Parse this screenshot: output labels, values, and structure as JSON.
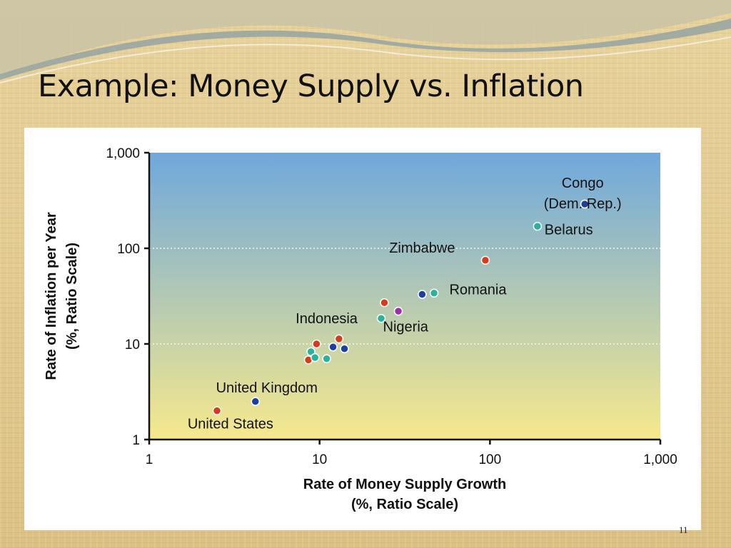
{
  "slide": {
    "title": "Example: Money Supply vs. Inflation",
    "number": "11",
    "background_color": "#e2c98a",
    "wave_colors": [
      "#9aa6a3",
      "#c9c3a6"
    ]
  },
  "chart_data": {
    "type": "scatter",
    "xlabel": [
      "Rate of Money Supply Growth",
      "(%, Ratio Scale)"
    ],
    "ylabel": [
      "Rate of Inflation per Year",
      "(%, Ratio Scale)"
    ],
    "xscale": "log",
    "yscale": "log",
    "xlim": [
      1,
      1000
    ],
    "ylim": [
      1,
      1000
    ],
    "xticks": [
      1,
      10,
      100,
      1000
    ],
    "yticks": [
      1,
      10,
      100,
      1000
    ],
    "xtick_labels": [
      "1",
      "10",
      "100",
      "1,000"
    ],
    "ytick_labels": [
      "1",
      "10",
      "100",
      "1,000"
    ],
    "grid": "horizontal dotted",
    "background_gradient": [
      "#6fa8dc",
      "#f6e98c"
    ],
    "point_colors": {
      "red": "#d63b1f",
      "navy": "#1f3f9e",
      "teal": "#2ab39c",
      "purple": "#9c2fa6"
    },
    "points": [
      {
        "x": 2.5,
        "y": 2,
        "color": "red"
      },
      {
        "x": 4.2,
        "y": 2.5,
        "color": "navy"
      },
      {
        "x": 8.6,
        "y": 6.8,
        "color": "red"
      },
      {
        "x": 8.9,
        "y": 8.3,
        "color": "teal"
      },
      {
        "x": 9.4,
        "y": 7.2,
        "color": "teal"
      },
      {
        "x": 9.6,
        "y": 10,
        "color": "red"
      },
      {
        "x": 11,
        "y": 7,
        "color": "teal"
      },
      {
        "x": 12,
        "y": 9.3,
        "color": "navy"
      },
      {
        "x": 13,
        "y": 11.3,
        "color": "red"
      },
      {
        "x": 14,
        "y": 8.9,
        "color": "navy"
      },
      {
        "x": 23,
        "y": 18.5,
        "color": "teal"
      },
      {
        "x": 24,
        "y": 27,
        "color": "red"
      },
      {
        "x": 29,
        "y": 22,
        "color": "purple"
      },
      {
        "x": 40,
        "y": 33,
        "color": "navy"
      },
      {
        "x": 47,
        "y": 34,
        "color": "teal"
      },
      {
        "x": 94,
        "y": 75,
        "color": "red"
      },
      {
        "x": 190,
        "y": 170,
        "color": "teal"
      },
      {
        "x": 360,
        "y": 290,
        "color": "navy"
      }
    ],
    "annotations": [
      {
        "lines": [
          "Congo",
          "(Dem. Rep.)"
        ],
        "x": 350,
        "y": 430
      },
      {
        "lines": [
          "Belarus"
        ],
        "x": 290,
        "y": 140
      },
      {
        "lines": [
          "Zimbabwe"
        ],
        "x": 40,
        "y": 90
      },
      {
        "lines": [
          "Romania"
        ],
        "x": 85,
        "y": 33
      },
      {
        "lines": [
          "Nigeria"
        ],
        "x": 32,
        "y": 13.5
      },
      {
        "lines": [
          "Indonesia"
        ],
        "x": 11,
        "y": 16.5
      },
      {
        "lines": [
          "United Kingdom"
        ],
        "x": 4.9,
        "y": 3.1
      },
      {
        "lines": [
          "United States"
        ],
        "x": 3,
        "y": 1.3
      }
    ]
  }
}
